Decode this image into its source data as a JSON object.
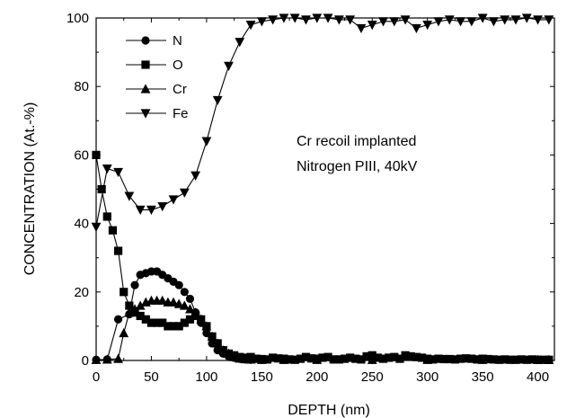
{
  "chart_data": {
    "type": "line",
    "xlabel": "DEPTH (nm)",
    "ylabel": "CONCENTRATION (At.-%)",
    "xlim": [
      0,
      415
    ],
    "ylim": [
      0,
      100
    ],
    "xticks": [
      0,
      50,
      100,
      150,
      200,
      250,
      300,
      350,
      400
    ],
    "yticks": [
      0,
      20,
      40,
      60,
      80,
      100
    ],
    "x_tick_labels": [
      "0",
      "50",
      "100",
      "150",
      "200",
      "250",
      "300",
      "350",
      "400"
    ],
    "y_tick_labels": [
      "0",
      "20",
      "40",
      "60",
      "80",
      "100"
    ],
    "legend_position": "top-left",
    "grid": false,
    "annotation": [
      "Cr recoil implanted",
      "Nitrogen PIII, 40kV"
    ],
    "series": [
      {
        "name": "N",
        "marker": "circle",
        "x": [
          0,
          10,
          20,
          30,
          35,
          40,
          45,
          50,
          55,
          60,
          65,
          70,
          75,
          80,
          85,
          90,
          95,
          100,
          105,
          110,
          115,
          120,
          125,
          130,
          135,
          140,
          150,
          170,
          200,
          250,
          300,
          350,
          400,
          410
        ],
        "y": [
          0.2,
          0.3,
          12,
          13.5,
          22,
          25,
          25.5,
          26,
          26,
          25,
          24,
          23,
          22,
          20,
          18,
          14,
          11,
          8,
          5,
          3,
          2,
          1.2,
          0.8,
          0.5,
          0.3,
          0.2,
          0.2,
          0.2,
          0.2,
          0.2,
          0.2,
          0.2,
          0.2,
          0.2
        ]
      },
      {
        "name": "O",
        "marker": "square",
        "x": [
          0,
          5,
          10,
          15,
          20,
          25,
          30,
          35,
          40,
          45,
          50,
          55,
          60,
          65,
          70,
          75,
          80,
          85,
          90,
          95,
          100,
          105,
          110,
          115,
          120,
          125,
          130,
          135,
          140,
          145,
          150,
          155,
          160,
          165,
          170,
          175,
          180,
          185,
          190,
          195,
          200,
          205,
          210,
          215,
          220,
          225,
          230,
          235,
          240,
          245,
          250,
          255,
          260,
          265,
          270,
          275,
          280,
          285,
          290,
          295,
          300,
          305,
          310,
          315,
          320,
          325,
          330,
          335,
          340,
          345,
          350,
          355,
          360,
          365,
          370,
          375,
          380,
          385,
          390,
          395,
          400,
          405,
          410
        ],
        "y": [
          60,
          50,
          42,
          38,
          32,
          20,
          16,
          14,
          13,
          12,
          11,
          11,
          11,
          10,
          10,
          10,
          11,
          12,
          13,
          12,
          10,
          7,
          5,
          3,
          2,
          1.5,
          1,
          0.8,
          1.0,
          0.5,
          0.4,
          0.3,
          0.8,
          0.6,
          0.5,
          0.3,
          0.2,
          0.5,
          1.0,
          0.6,
          0.5,
          0.8,
          1.0,
          0.3,
          0.3,
          0.5,
          0.8,
          0.5,
          0.3,
          1.2,
          1.5,
          0.8,
          0.5,
          0.8,
          1.0,
          0.5,
          1.5,
          1.2,
          1.0,
          0.8,
          0.5,
          0.3,
          0.5,
          0.4,
          0.4,
          0.3,
          0.5,
          0.6,
          0.5,
          0.3,
          0.5,
          0.4,
          0.3,
          0.2,
          0.3,
          0.2,
          0.2,
          0.3,
          0.2,
          0.3,
          0.2,
          0.2,
          0.2
        ]
      },
      {
        "name": "Cr",
        "marker": "triangle-up",
        "x": [
          0,
          10,
          20,
          25,
          30,
          35,
          40,
          45,
          50,
          55,
          60,
          65,
          70,
          75,
          80,
          85,
          90,
          95,
          100,
          105,
          110,
          115,
          120,
          125,
          130,
          135,
          140,
          150,
          170,
          200,
          250,
          300,
          350,
          400,
          410
        ],
        "y": [
          0.2,
          0.3,
          0.5,
          8,
          14,
          15,
          16,
          17,
          17.5,
          17.5,
          17.5,
          17,
          17,
          16.5,
          16,
          15,
          14,
          12,
          10,
          7,
          5,
          3,
          2,
          1,
          0.6,
          0.4,
          0.3,
          0.2,
          0.2,
          0.2,
          0.2,
          0.2,
          0.2,
          0.2,
          0.2
        ]
      },
      {
        "name": "Fe",
        "marker": "triangle-down",
        "x": [
          0,
          10,
          20,
          30,
          40,
          50,
          60,
          70,
          80,
          90,
          100,
          110,
          120,
          130,
          140,
          150,
          160,
          170,
          180,
          190,
          200,
          210,
          220,
          230,
          240,
          250,
          260,
          270,
          280,
          290,
          300,
          310,
          320,
          330,
          340,
          350,
          360,
          370,
          380,
          390,
          400,
          410
        ],
        "y": [
          39,
          56,
          55,
          48,
          44,
          44,
          45,
          47,
          49,
          54,
          64,
          76,
          86,
          93,
          98,
          99,
          99.5,
          100,
          100,
          99.5,
          100,
          100,
          99.5,
          99.5,
          97,
          98,
          99,
          99,
          99.5,
          97,
          98,
          99,
          99.5,
          99,
          99,
          100,
          99,
          99.5,
          99.5,
          100,
          99.5,
          99.5
        ]
      }
    ]
  }
}
